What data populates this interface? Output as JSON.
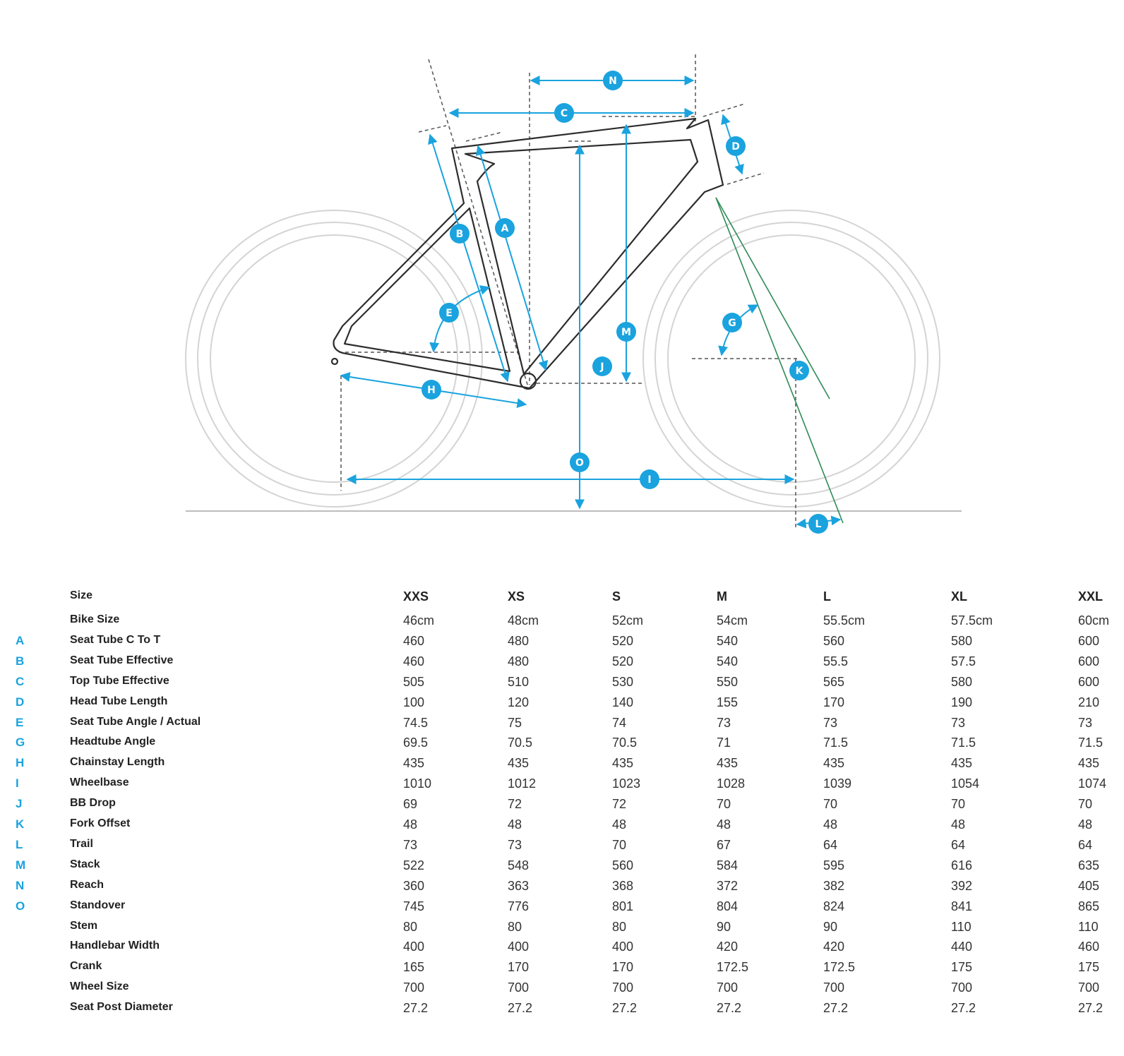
{
  "colors": {
    "accent": "#1aa3de",
    "frame": "#2d2d2d",
    "wheel": "#d4d4d4",
    "fork_offset": "#2e8b57",
    "ground": "#bdbdbd"
  },
  "diagram": {
    "markers": [
      "N",
      "C",
      "D",
      "A",
      "B",
      "E",
      "M",
      "G",
      "J",
      "K",
      "H",
      "O",
      "I",
      "L"
    ]
  },
  "table": {
    "header_label": "Size",
    "sizes": [
      "XXS",
      "XS",
      "S",
      "M",
      "L",
      "XL",
      "XXL"
    ],
    "rows": [
      {
        "letter": "",
        "label": "Bike Size",
        "values": [
          "46cm",
          "48cm",
          "52cm",
          "54cm",
          "55.5cm",
          "57.5cm",
          "60cm"
        ]
      },
      {
        "letter": "A",
        "label": "Seat Tube C To T",
        "values": [
          "460",
          "480",
          "520",
          "540",
          "560",
          "580",
          "600"
        ]
      },
      {
        "letter": "B",
        "label": "Seat Tube Effective",
        "values": [
          "460",
          "480",
          "520",
          "540",
          "55.5",
          "57.5",
          "600"
        ]
      },
      {
        "letter": "C",
        "label": "Top Tube Effective",
        "values": [
          "505",
          "510",
          "530",
          "550",
          "565",
          "580",
          "600"
        ]
      },
      {
        "letter": "D",
        "label": "Head Tube Length",
        "values": [
          "100",
          "120",
          "140",
          "155",
          "170",
          "190",
          "210"
        ]
      },
      {
        "letter": "E",
        "label": "Seat Tube Angle / Actual",
        "values": [
          "74.5",
          "75",
          "74",
          "73",
          "73",
          "73",
          "73"
        ]
      },
      {
        "letter": "G",
        "label": "Headtube Angle",
        "values": [
          "69.5",
          "70.5",
          "70.5",
          "71",
          "71.5",
          "71.5",
          "71.5"
        ]
      },
      {
        "letter": "H",
        "label": "Chainstay Length",
        "values": [
          "435",
          "435",
          "435",
          "435",
          "435",
          "435",
          "435"
        ]
      },
      {
        "letter": "I",
        "label": "Wheelbase",
        "values": [
          "1010",
          "1012",
          "1023",
          "1028",
          "1039",
          "1054",
          "1074"
        ]
      },
      {
        "letter": "J",
        "label": "BB Drop",
        "values": [
          "69",
          "72",
          "72",
          "70",
          "70",
          "70",
          "70"
        ]
      },
      {
        "letter": "K",
        "label": "Fork Offset",
        "values": [
          "48",
          "48",
          "48",
          "48",
          "48",
          "48",
          "48"
        ]
      },
      {
        "letter": "L",
        "label": "Trail",
        "values": [
          "73",
          "73",
          "70",
          "67",
          "64",
          "64",
          "64"
        ]
      },
      {
        "letter": "M",
        "label": "Stack",
        "values": [
          "522",
          "548",
          "560",
          "584",
          "595",
          "616",
          "635"
        ]
      },
      {
        "letter": "N",
        "label": "Reach",
        "values": [
          "360",
          "363",
          "368",
          "372",
          "382",
          "392",
          "405"
        ]
      },
      {
        "letter": "O",
        "label": "Standover",
        "values": [
          "745",
          "776",
          "801",
          "804",
          "824",
          "841",
          "865"
        ]
      },
      {
        "letter": "",
        "label": "Stem",
        "values": [
          "80",
          "80",
          "80",
          "90",
          "90",
          "110",
          "110"
        ]
      },
      {
        "letter": "",
        "label": "Handlebar Width",
        "values": [
          "400",
          "400",
          "400",
          "420",
          "420",
          "440",
          "460"
        ]
      },
      {
        "letter": "",
        "label": "Crank",
        "values": [
          "165",
          "170",
          "170",
          "172.5",
          "172.5",
          "175",
          "175"
        ]
      },
      {
        "letter": "",
        "label": "Wheel Size",
        "values": [
          "700",
          "700",
          "700",
          "700",
          "700",
          "700",
          "700"
        ]
      },
      {
        "letter": "",
        "label": "Seat Post Diameter",
        "values": [
          "27.2",
          "27.2",
          "27.2",
          "27.2",
          "27.2",
          "27.2",
          "27.2"
        ]
      }
    ]
  }
}
